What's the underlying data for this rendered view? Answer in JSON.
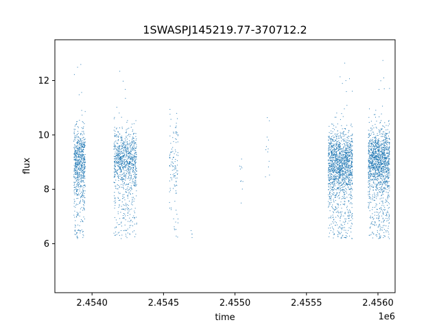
{
  "chart_data": {
    "type": "scatter",
    "title": "1SWASPJ145219.77-370712.2",
    "xlabel": "time",
    "ylabel": "flux",
    "x_offset_label": "1e6",
    "xlim": [
      2453740,
      2456120
    ],
    "ylim": [
      4.2,
      13.5
    ],
    "x_ticks": [
      2454000,
      2454500,
      2455000,
      2455500,
      2456000
    ],
    "x_tick_labels": [
      "2.4540",
      "2.4545",
      "2.4550",
      "2.4555",
      "2.4560"
    ],
    "y_ticks": [
      6,
      8,
      10,
      12
    ],
    "y_tick_labels": [
      "6",
      "8",
      "10",
      "12"
    ],
    "grid": false,
    "series": [
      {
        "color": "#1f77b4",
        "clusters": [
          {
            "x_range": [
              2453870,
              2453950
            ],
            "y_center": 9.1,
            "y_spread": 0.55,
            "count": 750,
            "low_tail": 0.2
          },
          {
            "x_range": [
              2454150,
              2454310
            ],
            "y_center": 9.1,
            "y_spread": 0.55,
            "count": 1000,
            "low_tail": 0.18
          },
          {
            "x_range": [
              2454540,
              2454600
            ],
            "y_center": 9.2,
            "y_spread": 0.7,
            "count": 120,
            "low_tail": 0.2
          },
          {
            "x_range": [
              2454690,
              2454700
            ],
            "y_center": 6.3,
            "y_spread": 0.15,
            "count": 4,
            "low_tail": 0
          },
          {
            "x_range": [
              2455030,
              2455060
            ],
            "y_center": 8.6,
            "y_spread": 0.6,
            "count": 10,
            "low_tail": 0
          },
          {
            "x_range": [
              2455210,
              2455240
            ],
            "y_center": 9.4,
            "y_spread": 0.5,
            "count": 12,
            "low_tail": 0
          },
          {
            "x_range": [
              2455650,
              2455820
            ],
            "y_center": 9.0,
            "y_spread": 0.55,
            "count": 1600,
            "low_tail": 0.18
          },
          {
            "x_range": [
              2455930,
              2456080
            ],
            "y_center": 9.1,
            "y_spread": 0.55,
            "count": 1500,
            "low_tail": 0.18
          }
        ]
      }
    ]
  }
}
